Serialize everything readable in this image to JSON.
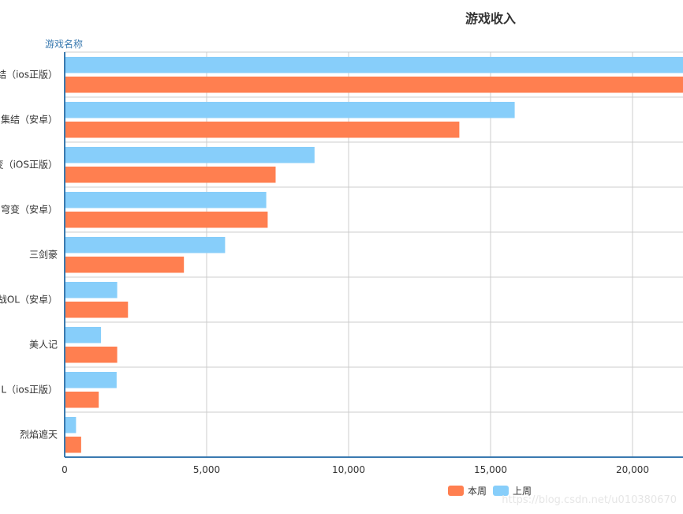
{
  "chart_data": {
    "type": "bar",
    "orientation": "horizontal",
    "title": "游戏收入",
    "ylabel": "游戏名称",
    "xlabel": "",
    "xlim": [
      0,
      22000
    ],
    "xticks": [
      0,
      5000,
      10000,
      15000,
      20000
    ],
    "xtick_labels": [
      "0",
      "5,000",
      "10,000",
      "15,000",
      "20,000"
    ],
    "categories": [
      "结（ios正版）",
      "集结（安卓）",
      "变（iOS正版）",
      "穹变（安卓）",
      "三剑豪",
      "战OL（安卓）",
      "美人记",
      "L（ios正版）",
      "烈焰遮天"
    ],
    "series": [
      {
        "name": "上周",
        "color": "#87cefa",
        "values": [
          22000,
          15850,
          8800,
          7100,
          5650,
          1850,
          1280,
          1830,
          400
        ]
      },
      {
        "name": "本周",
        "color": "#ff7f50",
        "values": [
          22000,
          13900,
          7430,
          7150,
          4200,
          2230,
          1850,
          1200,
          580
        ]
      }
    ],
    "legend": {
      "position": "bottom-right",
      "items": [
        "本周",
        "上周"
      ]
    },
    "grid": true
  },
  "watermark": "https://blog.csdn.net/u010380670"
}
